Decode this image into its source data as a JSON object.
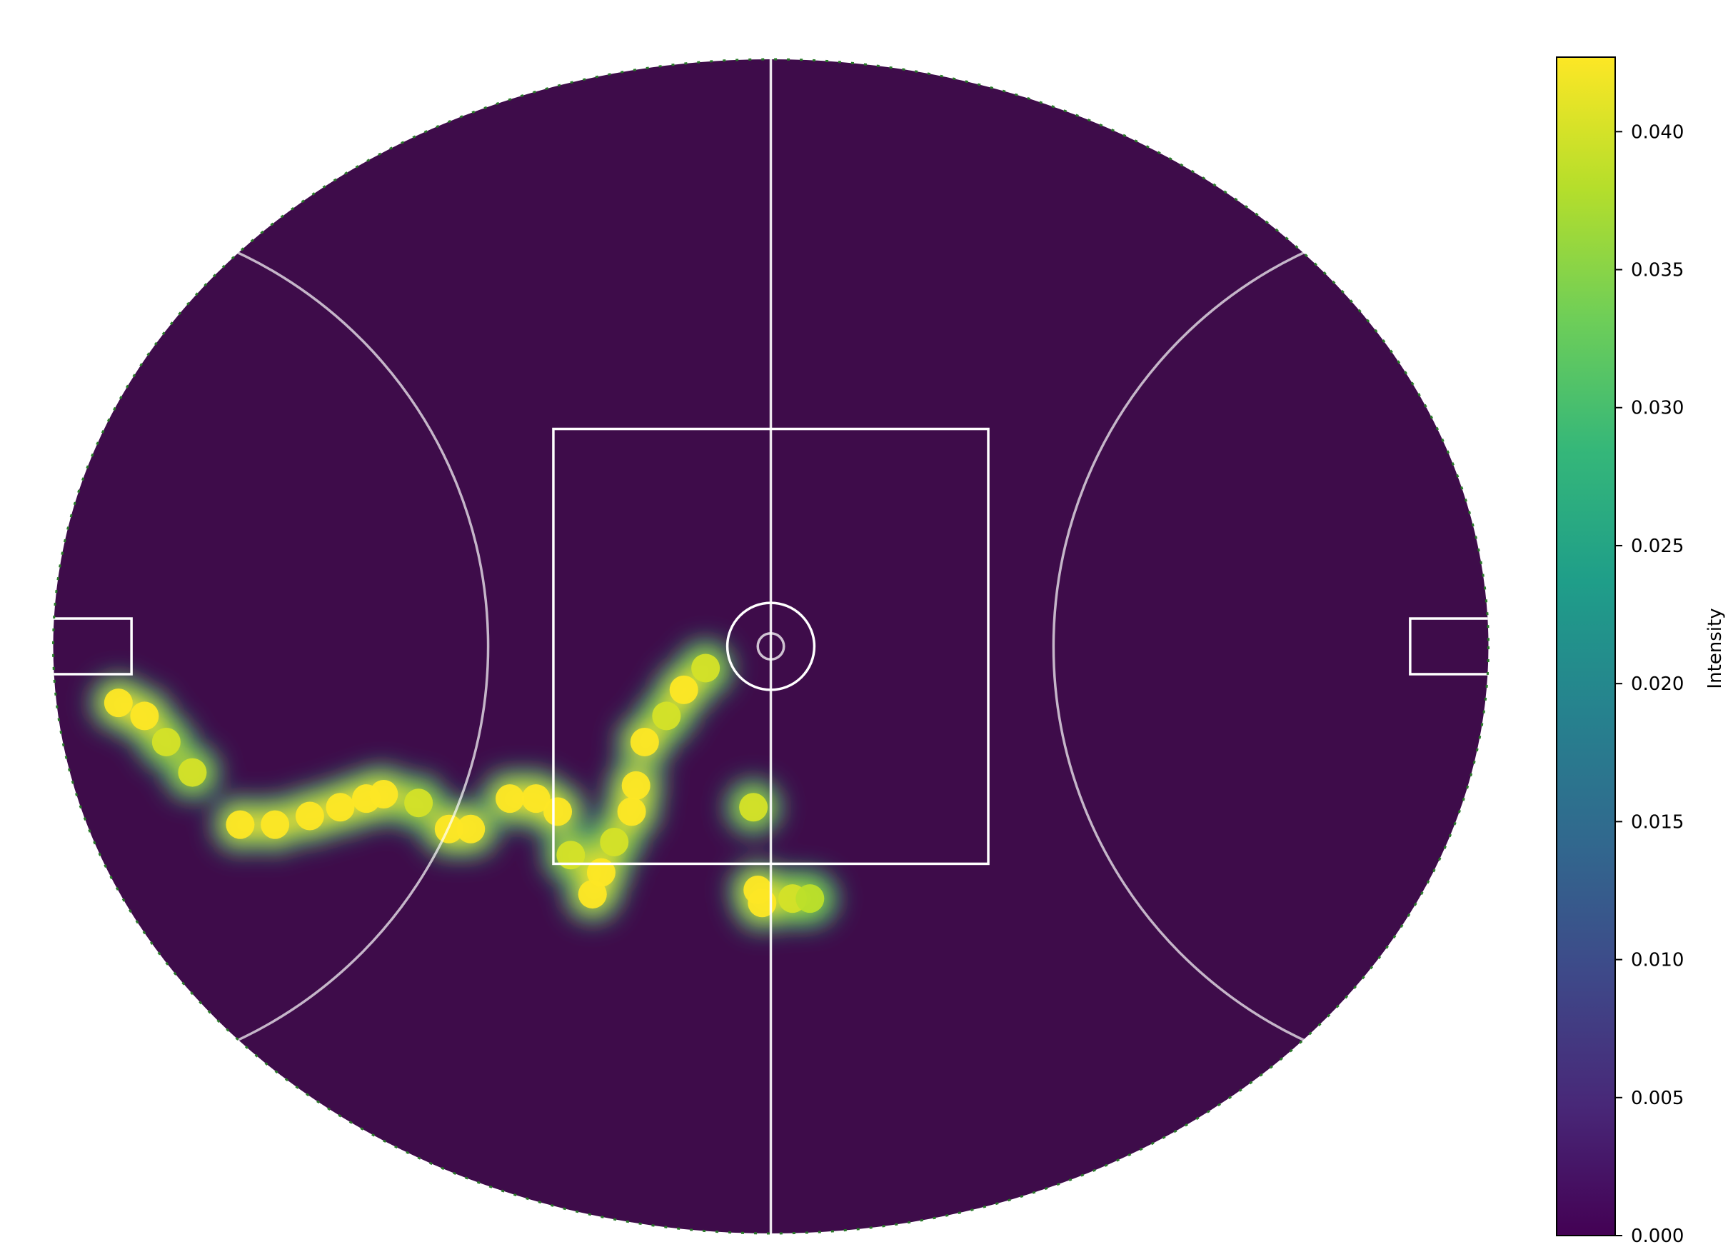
{
  "chart_data": {
    "type": "heatmap",
    "title": "",
    "xlabel": "",
    "ylabel": "",
    "field": {
      "shape": "oval",
      "x_range": [
        -82.5,
        82.5
      ],
      "y_range": [
        -67.5,
        67.5
      ],
      "center_square": 50,
      "center_circle_radius": 5,
      "center_dot_radius": 1.5,
      "arc_radius": 50,
      "goal_square_depth": 9,
      "goal_square_width": 6.4,
      "line_color": "#ffffff",
      "field_color": "#3e0c4a"
    },
    "colormap": "viridis",
    "colorbar": {
      "label": "Intensity",
      "min": 0.0,
      "max": 0.0427,
      "ticks": [
        "0.000",
        "0.005",
        "0.010",
        "0.015",
        "0.020",
        "0.025",
        "0.030",
        "0.035",
        "0.040"
      ],
      "tick_values": [
        0.0,
        0.005,
        0.01,
        0.015,
        0.02,
        0.025,
        0.03,
        0.035,
        0.04
      ]
    },
    "hotspots": [
      {
        "x": -75.0,
        "y": -6.5,
        "intensity": 0.0427
      },
      {
        "x": -72.0,
        "y": -8.0,
        "intensity": 0.0427
      },
      {
        "x": -69.5,
        "y": -11.0,
        "intensity": 0.04
      },
      {
        "x": -66.5,
        "y": -14.5,
        "intensity": 0.04
      },
      {
        "x": -61.0,
        "y": -20.5,
        "intensity": 0.0427
      },
      {
        "x": -57.0,
        "y": -20.5,
        "intensity": 0.0427
      },
      {
        "x": -53.0,
        "y": -19.5,
        "intensity": 0.0427
      },
      {
        "x": -49.5,
        "y": -18.5,
        "intensity": 0.0427
      },
      {
        "x": -46.5,
        "y": -17.5,
        "intensity": 0.0427
      },
      {
        "x": -44.5,
        "y": -17.0,
        "intensity": 0.0427
      },
      {
        "x": -40.5,
        "y": -18.0,
        "intensity": 0.04
      },
      {
        "x": -37.0,
        "y": -21.0,
        "intensity": 0.0427
      },
      {
        "x": -34.5,
        "y": -21.0,
        "intensity": 0.0427
      },
      {
        "x": -30.0,
        "y": -17.5,
        "intensity": 0.0427
      },
      {
        "x": -27.0,
        "y": -17.5,
        "intensity": 0.0427
      },
      {
        "x": -24.5,
        "y": -19.0,
        "intensity": 0.0427
      },
      {
        "x": -23.0,
        "y": -24.0,
        "intensity": 0.04
      },
      {
        "x": -20.5,
        "y": -28.5,
        "intensity": 0.0427
      },
      {
        "x": -19.5,
        "y": -26.0,
        "intensity": 0.0427
      },
      {
        "x": -18.0,
        "y": -22.5,
        "intensity": 0.04
      },
      {
        "x": -16.0,
        "y": -19.0,
        "intensity": 0.0427
      },
      {
        "x": -15.5,
        "y": -16.0,
        "intensity": 0.0427
      },
      {
        "x": -14.5,
        "y": -11.0,
        "intensity": 0.0427
      },
      {
        "x": -12.0,
        "y": -8.0,
        "intensity": 0.04
      },
      {
        "x": -10.0,
        "y": -5.0,
        "intensity": 0.0427
      },
      {
        "x": -7.5,
        "y": -2.5,
        "intensity": 0.04
      },
      {
        "x": -2.0,
        "y": -18.5,
        "intensity": 0.04
      },
      {
        "x": -1.5,
        "y": -28.0,
        "intensity": 0.0427
      },
      {
        "x": -1.0,
        "y": -29.5,
        "intensity": 0.0427
      },
      {
        "x": 2.5,
        "y": -29.0,
        "intensity": 0.04
      },
      {
        "x": 4.5,
        "y": -29.0,
        "intensity": 0.038
      }
    ]
  }
}
